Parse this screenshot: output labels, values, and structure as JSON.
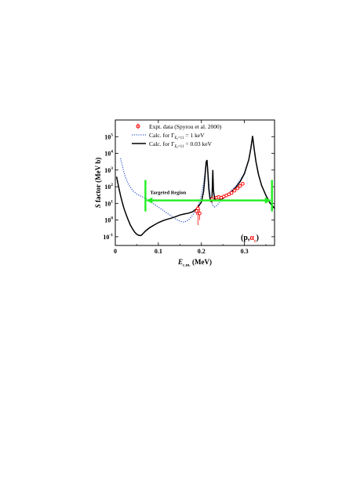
{
  "chart_data": {
    "type": "line",
    "xlabel": "E",
    "xlabel_sub": "c.m.",
    "xlabel_unit": "(MeV)",
    "ylabel_italic": "S",
    "ylabel_rest": " factor (MeV b)",
    "xlim": [
      0,
      0.37
    ],
    "ylog": true,
    "ylim": [
      0.03,
      1000000
    ],
    "x_ticks": [
      0,
      0.1,
      0.2,
      0.3
    ],
    "x_tick_labels": [
      "0",
      "0.1",
      "0.2",
      "0.3"
    ],
    "y_ticks": [
      0.1,
      1,
      10,
      100,
      1000,
      10000,
      100000
    ],
    "y_tick_base": "10",
    "y_tick_exponents": [
      "-1",
      "0",
      "1",
      "2",
      "3",
      "4",
      "5"
    ],
    "grid": false,
    "legend_position": "top-center",
    "annotation": "Targeted  Region",
    "target_region": [
      0.07,
      0.364
    ],
    "target_region_y": 15,
    "reaction_label": {
      "paren_open": "(p,",
      "particle": "α",
      "subscript": "c",
      "paren_close": ")"
    },
    "colors": {
      "data": "#ff0000",
      "calc1": "#3a5fcd",
      "calc2": "#000000",
      "region": "#22ee22"
    },
    "series": [
      {
        "name": "Expt. data (Spyrou et al. 2000)",
        "kind": "points",
        "x": [
          0.189,
          0.192,
          0.196,
          0.225,
          0.235,
          0.24,
          0.246,
          0.252,
          0.258,
          0.264,
          0.27,
          0.277,
          0.284,
          0.29,
          0.296
        ],
        "y": [
          3.5,
          5,
          2.5,
          18,
          22,
          24,
          22,
          26,
          30,
          35,
          42,
          58,
          80,
          110,
          150
        ],
        "yerr_lo": [
          1.5,
          4.5,
          1.5,
          7,
          4,
          4,
          4,
          4,
          5,
          5,
          6,
          8,
          10,
          14,
          20
        ],
        "yerr_hi": [
          2,
          3,
          2,
          7,
          4,
          4,
          4,
          4,
          5,
          5,
          6,
          8,
          10,
          14,
          20
        ]
      },
      {
        "name": "Calc. for Γ = 1 keV",
        "legend_prefix": "Calc. for Γ",
        "legend_sub": "E",
        "legend_sub2": "r",
        "legend_sub3": "=11",
        "legend_value": " = 1 keV",
        "kind": "dotted",
        "x": [
          0.012,
          0.016,
          0.02,
          0.025,
          0.03,
          0.04,
          0.05,
          0.06,
          0.07,
          0.08,
          0.09,
          0.1,
          0.11,
          0.12,
          0.13,
          0.14,
          0.15,
          0.16,
          0.17,
          0.18,
          0.19,
          0.2,
          0.205,
          0.21,
          0.213,
          0.216,
          0.219,
          0.222,
          0.226,
          0.23,
          0.235,
          0.24,
          0.245,
          0.25,
          0.26,
          0.27,
          0.28,
          0.29,
          0.3,
          0.31,
          0.315,
          0.319,
          0.323,
          0.327,
          0.333,
          0.34,
          0.35,
          0.36,
          0.37
        ],
        "y": [
          5000,
          2000,
          700,
          300,
          150,
          60,
          36,
          27,
          20,
          14,
          9,
          6,
          4,
          2.6,
          1.8,
          1.2,
          0.85,
          0.75,
          1.0,
          2.0,
          4.5,
          30,
          150,
          1500,
          3000,
          500,
          60,
          15,
          8,
          6,
          7,
          10,
          14,
          20,
          35,
          60,
          110,
          250,
          700,
          4000,
          20000,
          100000,
          15000,
          3000,
          500,
          120,
          30,
          10,
          5
        ]
      },
      {
        "name": "Calc. for Γ = 0.03 keV",
        "legend_prefix": "Calc. for Γ",
        "legend_sub": "E",
        "legend_sub2": "r",
        "legend_sub3": "=11",
        "legend_value": " = 0.03 keV",
        "kind": "solid",
        "x": [
          0.003,
          0.008,
          0.012,
          0.016,
          0.02,
          0.025,
          0.03,
          0.035,
          0.04,
          0.045,
          0.05,
          0.055,
          0.06,
          0.065,
          0.07,
          0.08,
          0.09,
          0.1,
          0.11,
          0.12,
          0.13,
          0.14,
          0.15,
          0.16,
          0.17,
          0.18,
          0.19,
          0.2,
          0.205,
          0.208,
          0.211,
          0.213,
          0.215,
          0.217,
          0.22,
          0.223,
          0.225,
          0.2265,
          0.228,
          0.231,
          0.235,
          0.24,
          0.25,
          0.26,
          0.27,
          0.28,
          0.29,
          0.3,
          0.31,
          0.315,
          0.319,
          0.323,
          0.327,
          0.333,
          0.34,
          0.35,
          0.36,
          0.37
        ],
        "y": [
          400,
          90,
          30,
          12,
          5,
          2.2,
          1.0,
          0.5,
          0.3,
          0.19,
          0.14,
          0.12,
          0.12,
          0.16,
          0.22,
          0.35,
          0.5,
          0.7,
          0.9,
          1.1,
          1.3,
          1.6,
          2.0,
          2.3,
          2.6,
          3.2,
          5,
          12,
          50,
          300,
          3000,
          4000,
          700,
          80,
          20,
          12,
          30,
          1000,
          60,
          18,
          15,
          16,
          20,
          30,
          50,
          90,
          200,
          600,
          4000,
          20000,
          110000,
          16000,
          3000,
          500,
          120,
          30,
          10,
          5
        ]
      }
    ]
  }
}
